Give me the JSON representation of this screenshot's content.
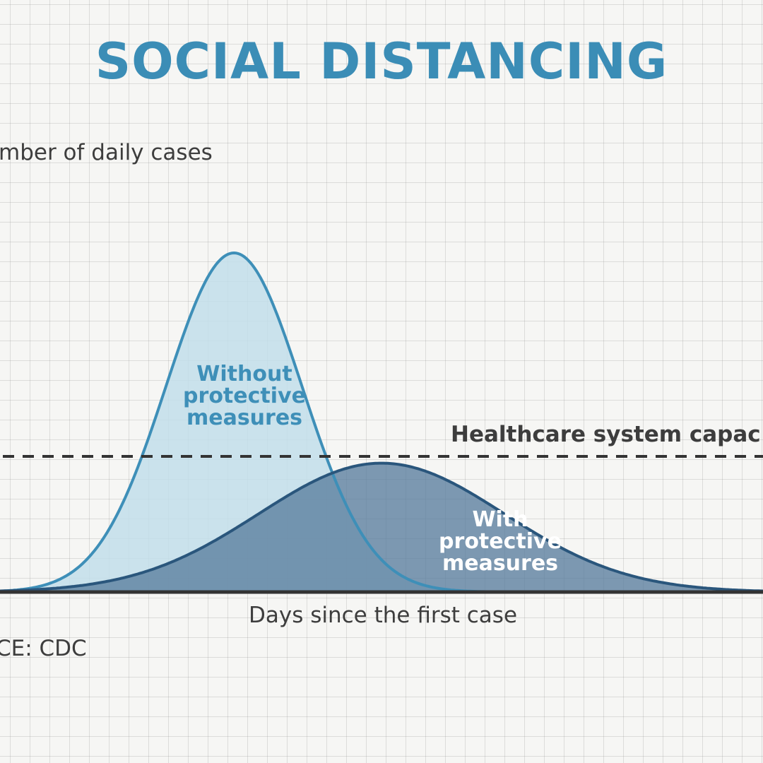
{
  "title": "SOCIAL DISTANCING",
  "source": "CE: CDC",
  "annotations": {
    "capacity": "Healthcare system capac",
    "without": "Without\nprotective\nmeasures",
    "with": "With\nprotective\nmeasures"
  },
  "colors": {
    "title": "#3b8db6",
    "without_stroke": "#3e8fb8",
    "without_fill": "#c2deea",
    "with_stroke": "#2a567c",
    "with_fill": "#5a7e9e",
    "axis": "#333333"
  },
  "chart_data": {
    "type": "area",
    "title": "",
    "xlabel": "Days since the first case",
    "ylabel": "mber of daily cases",
    "grid": true,
    "legend": "none",
    "xlim": [
      0,
      100
    ],
    "ylim": [
      0,
      100
    ],
    "capacity_line": 40,
    "series": [
      {
        "name": "Without protective measures",
        "peak_x": 32,
        "peak_y": 100,
        "spread": 8.3
      },
      {
        "name": "With protective measures",
        "peak_x": 50,
        "peak_y": 38,
        "spread": 15
      }
    ]
  }
}
